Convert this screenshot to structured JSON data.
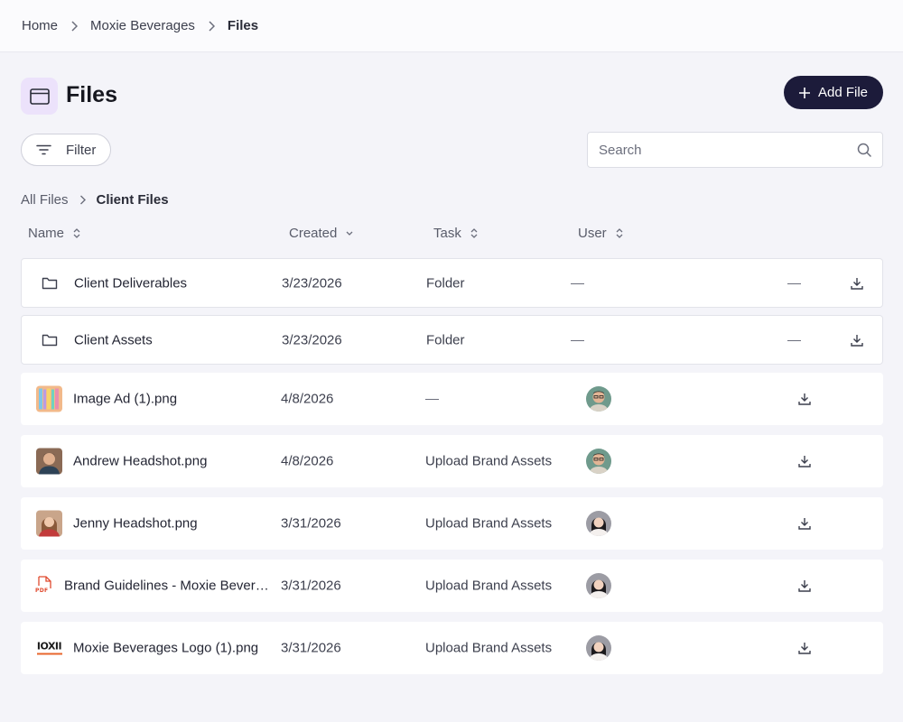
{
  "breadcrumb": {
    "home": "Home",
    "client": "Moxie Beverages",
    "current": "Files"
  },
  "page": {
    "title": "Files",
    "add_label": "Add File"
  },
  "toolbar": {
    "filter_label": "Filter",
    "search_placeholder": "Search"
  },
  "folder_crumbs": {
    "root": "All Files",
    "current": "Client Files"
  },
  "columns": {
    "name": "Name",
    "created": "Created",
    "task": "Task",
    "user": "User"
  },
  "rows": [
    {
      "name": "Client Deliverables",
      "created": "3/23/2026",
      "task": "Folder",
      "user": "—",
      "extra": "—",
      "kind": "folder-icon"
    },
    {
      "name": "Client Assets",
      "created": "3/23/2026",
      "task": "Folder",
      "user": "—",
      "extra": "—",
      "kind": "folder-icon"
    },
    {
      "name": "Image Ad (1).png",
      "created": "4/8/2026",
      "task": "—",
      "kind": "image-thumbnail",
      "user_avatar": "man-avatar"
    },
    {
      "name": "Andrew Headshot.png",
      "created": "4/8/2026",
      "task": "Upload Brand Assets",
      "kind": "headshot-thumbnail",
      "user_avatar": "man-avatar"
    },
    {
      "name": "Jenny Headshot.png",
      "created": "3/31/2026",
      "task": "Upload Brand Assets",
      "kind": "headshot-thumbnail",
      "user_avatar": "woman-avatar"
    },
    {
      "name": "Brand Guidelines - Moxie Bever…",
      "created": "3/31/2026",
      "task": "Upload Brand Assets",
      "kind": "pdf-icon",
      "thumb_label": "PDF",
      "user_avatar": "woman-avatar"
    },
    {
      "name": "Moxie Beverages Logo (1).png",
      "created": "3/31/2026",
      "task": "Upload Brand Assets",
      "kind": "logo-thumbnail",
      "thumb_label": "IOXII",
      "user_avatar": "woman-avatar"
    }
  ],
  "colors": {
    "accent_dark": "#1c1b3a",
    "title_icon_bg": "#ece2fb",
    "page_bg": "#f4f4f9"
  }
}
